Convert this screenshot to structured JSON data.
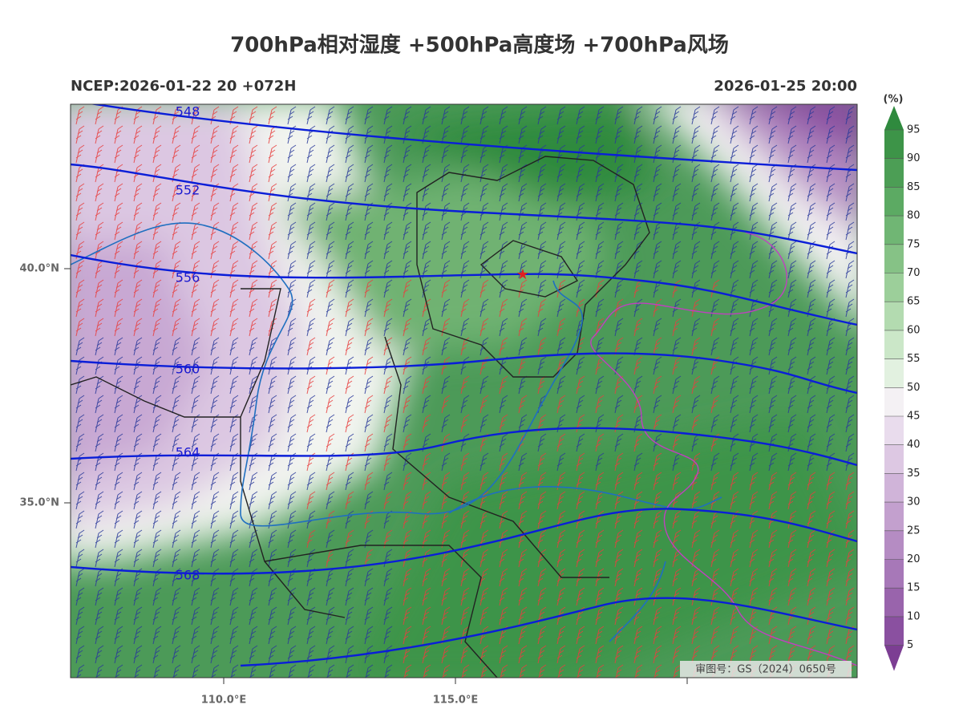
{
  "title": "700hPa相对湿度 +500hPa高度场 +700hPa风场",
  "header": {
    "left": "NCEP:2026-01-22 20 +072H",
    "right": "2026-01-25 20:00"
  },
  "map": {
    "lat_ticks": [
      "40.0°N",
      "35.0°N"
    ],
    "lon_ticks": [
      "110.0°E",
      "115.0°E"
    ],
    "contour_labels": [
      "548",
      "552",
      "556",
      "560",
      "564",
      "568"
    ],
    "stamp": "审图号：GS（2024）0650号"
  },
  "colorbar": {
    "unit": "(%)",
    "labels": [
      "95",
      "90",
      "85",
      "80",
      "75",
      "70",
      "65",
      "60",
      "55",
      "50",
      "45",
      "40",
      "35",
      "30",
      "25",
      "20",
      "15",
      "10",
      "5"
    ],
    "colors": [
      "#2f8a3e",
      "#3d9448",
      "#4c9e55",
      "#5caa63",
      "#70b674",
      "#86c286",
      "#9ccf9a",
      "#b3dbb0",
      "#cbe7c8",
      "#e2f1e0",
      "#f4f1f4",
      "#e9dced",
      "#ddc8e3",
      "#d0b4d9",
      "#c3a0ce",
      "#b58cc3",
      "#a778b8",
      "#9964ac",
      "#8a50a0",
      "#7c3e93"
    ]
  }
}
